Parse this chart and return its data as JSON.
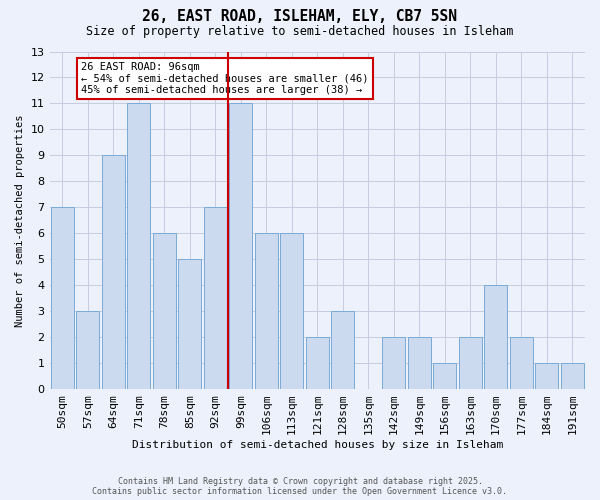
{
  "title": "26, EAST ROAD, ISLEHAM, ELY, CB7 5SN",
  "subtitle": "Size of property relative to semi-detached houses in Isleham",
  "xlabel": "Distribution of semi-detached houses by size in Isleham",
  "ylabel": "Number of semi-detached properties",
  "bar_labels": [
    "50sqm",
    "57sqm",
    "64sqm",
    "71sqm",
    "78sqm",
    "85sqm",
    "92sqm",
    "99sqm",
    "106sqm",
    "113sqm",
    "121sqm",
    "128sqm",
    "135sqm",
    "142sqm",
    "149sqm",
    "156sqm",
    "163sqm",
    "170sqm",
    "177sqm",
    "184sqm",
    "191sqm"
  ],
  "bar_values": [
    7,
    3,
    9,
    11,
    6,
    5,
    7,
    11,
    6,
    6,
    2,
    3,
    0,
    2,
    2,
    1,
    2,
    4,
    2,
    1,
    1
  ],
  "vline_x": 7.0,
  "annotation_title": "26 EAST ROAD: 96sqm",
  "annotation_line1": "← 54% of semi-detached houses are smaller (46)",
  "annotation_line2": "45% of semi-detached houses are larger (38) →",
  "bar_color": "#ccdaf0",
  "bar_edge_color": "#7aaad8",
  "vline_color": "#cc0000",
  "background_color": "#edf1fb",
  "grid_color": "#c5cce0",
  "ann_box_facecolor": "#ffffff",
  "ann_box_edgecolor": "#cc0000",
  "ylim_max": 13,
  "title_fontsize": 10.5,
  "subtitle_fontsize": 8.5,
  "footer_line1": "Contains HM Land Registry data © Crown copyright and database right 2025.",
  "footer_line2": "Contains public sector information licensed under the Open Government Licence v3.0."
}
